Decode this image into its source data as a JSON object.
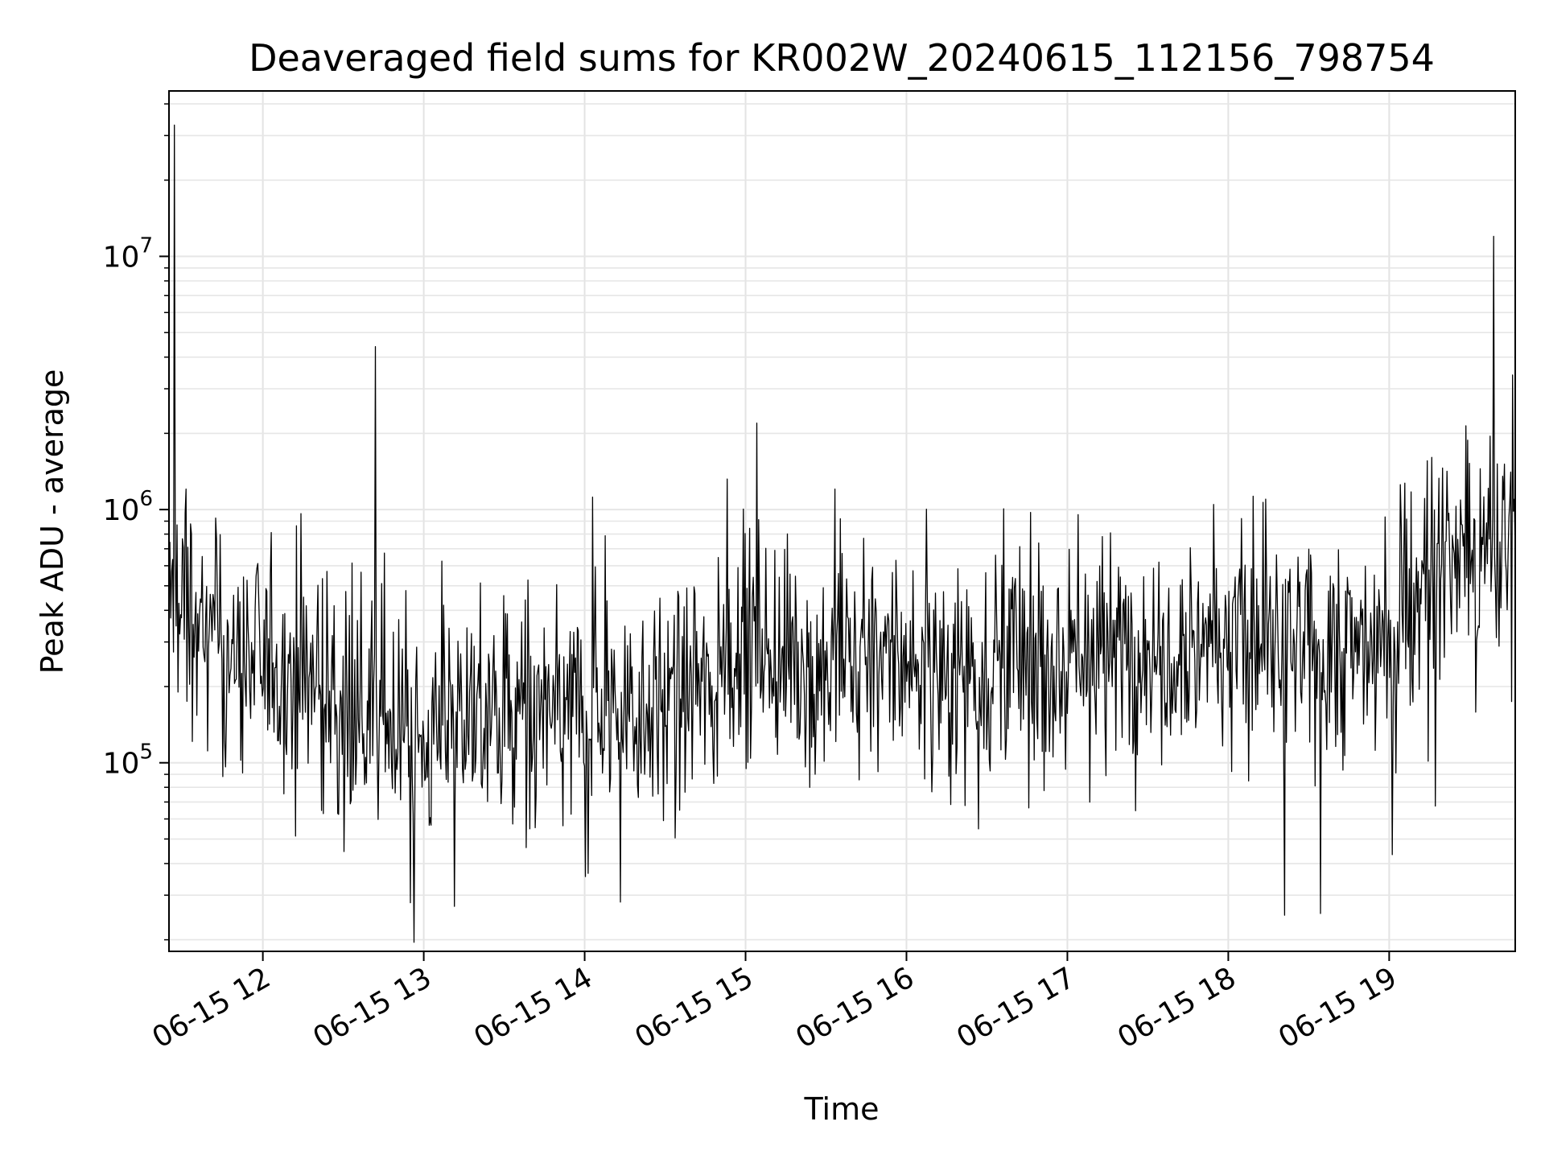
{
  "chart_data": {
    "type": "line",
    "title": "Deaveraged field sums for KR002W_20240615_112156_798754",
    "xlabel": "Time",
    "ylabel": "Peak ADU - average",
    "x_range": [
      "2024-06-15 11:25",
      "2024-06-15 19:47"
    ],
    "y_range": [
      18000,
      45000000
    ],
    "yscale": "log",
    "grid": true,
    "line_color": "#000000",
    "x_ticks": [
      {
        "value": "2024-06-15 12:00",
        "label": "06-15 12"
      },
      {
        "value": "2024-06-15 13:00",
        "label": "06-15 13"
      },
      {
        "value": "2024-06-15 14:00",
        "label": "06-15 14"
      },
      {
        "value": "2024-06-15 15:00",
        "label": "06-15 15"
      },
      {
        "value": "2024-06-15 16:00",
        "label": "06-15 16"
      },
      {
        "value": "2024-06-15 17:00",
        "label": "06-15 17"
      },
      {
        "value": "2024-06-15 18:00",
        "label": "06-15 18"
      },
      {
        "value": "2024-06-15 19:00",
        "label": "06-15 19"
      }
    ],
    "y_ticks": [
      {
        "value": 100000,
        "base": "10",
        "exp": "5"
      },
      {
        "value": 1000000,
        "base": "10",
        "exp": "6"
      },
      {
        "value": 10000000,
        "base": "10",
        "exp": "7"
      }
    ],
    "series": [
      {
        "x": [
          "2024-06-15 11:25",
          "2024-06-15 11:30",
          "2024-06-15 11:40",
          "2024-06-15 11:50",
          "2024-06-15 12:00",
          "2024-06-15 12:15",
          "2024-06-15 12:30",
          "2024-06-15 12:45",
          "2024-06-15 13:00",
          "2024-06-15 13:15",
          "2024-06-15 13:30",
          "2024-06-15 13:45",
          "2024-06-15 14:00",
          "2024-06-15 14:15",
          "2024-06-15 14:30",
          "2024-06-15 14:45",
          "2024-06-15 14:52",
          "2024-06-15 15:00",
          "2024-06-15 15:15",
          "2024-06-15 15:30",
          "2024-06-15 15:45",
          "2024-06-15 16:00",
          "2024-06-15 16:15",
          "2024-06-15 16:30",
          "2024-06-15 16:45",
          "2024-06-15 17:00",
          "2024-06-15 17:15",
          "2024-06-15 17:30",
          "2024-06-15 17:45",
          "2024-06-15 18:00",
          "2024-06-15 18:15",
          "2024-06-15 18:30",
          "2024-06-15 18:45",
          "2024-06-15 19:00",
          "2024-06-15 19:10",
          "2024-06-15 19:20",
          "2024-06-15 19:30",
          "2024-06-15 19:40",
          "2024-06-15 19:47"
        ],
        "y": [
          450000,
          400000,
          300000,
          260000,
          250000,
          220000,
          180000,
          150000,
          120000,
          150000,
          160000,
          150000,
          170000,
          170000,
          180000,
          200000,
          260000,
          330000,
          260000,
          230000,
          240000,
          250000,
          240000,
          250000,
          260000,
          270000,
          280000,
          300000,
          320000,
          320000,
          280000,
          260000,
          280000,
          320000,
          450000,
          650000,
          650000,
          600000,
          800000
        ]
      }
    ],
    "spikes": [
      {
        "x": "2024-06-15 11:27",
        "y": 33000000
      },
      {
        "x": "2024-06-15 12:42",
        "y": 4400000
      },
      {
        "x": "2024-06-15 14:03",
        "y": 1120000
      },
      {
        "x": "2024-06-15 14:53",
        "y": 1320000
      },
      {
        "x": "2024-06-15 12:55",
        "y": 28000
      },
      {
        "x": "2024-06-15 18:21",
        "y": 25000
      },
      {
        "x": "2024-06-15 19:39",
        "y": 12000000
      },
      {
        "x": "2024-06-15 19:46",
        "y": 3400000
      }
    ]
  }
}
